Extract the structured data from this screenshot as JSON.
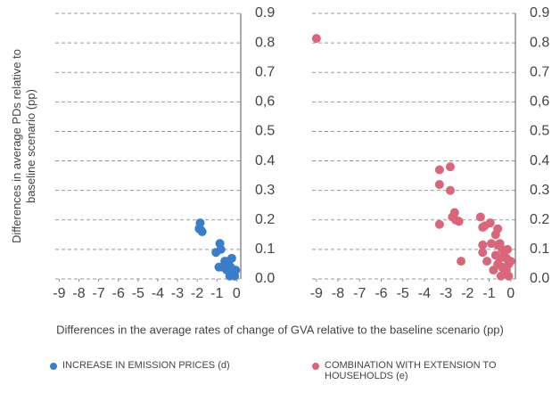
{
  "chart_data": [
    {
      "type": "scatter",
      "y_label": [
        "Differences in average PDs relative to",
        "baseline scenario (pp)"
      ],
      "x_label": "Differences in the average rates of change of GVA relative to the baseline scenario (pp)",
      "xlim": [
        -9.2,
        0.3
      ],
      "xticks": [
        -9,
        -8,
        -7,
        -6,
        -5,
        -4,
        -3,
        -2,
        -1,
        0
      ],
      "ylim": [
        0,
        0.9
      ],
      "yticks": [
        {
          "value": 0,
          "label": "0.0"
        },
        0.1,
        0.2,
        0.3,
        0.4,
        0.5,
        {
          "value": 0.6,
          "label": "0,6"
        },
        0.7,
        0.8,
        0.9
      ],
      "grid": true,
      "series": [
        {
          "name": "INCREASE IN EMISSION PRICES (d)",
          "color": "#3a7dc9",
          "x": [
            -1.85,
            -1.9,
            -1.8,
            -1.75,
            -0.85,
            -0.8,
            -1.05,
            -0.9,
            -0.6,
            -0.5,
            -0.4,
            -0.3,
            -0.2,
            -0.15,
            -0.1,
            -0.3,
            -0.05,
            -0.25,
            -0.5,
            -0.35,
            -0.7
          ],
          "values": [
            0.19,
            0.17,
            0.165,
            0.16,
            0.12,
            0.1,
            0.09,
            0.04,
            0.06,
            0.05,
            0.06,
            0.04,
            0.03,
            0.02,
            0.01,
            0.02,
            0.03,
            0.07,
            0.03,
            0.01,
            0.04
          ]
        }
      ]
    },
    {
      "type": "scatter",
      "xlim": [
        -9.2,
        0.3
      ],
      "xticks": [
        -9,
        -8,
        -7,
        -6,
        -5,
        -4,
        -3,
        -2,
        -1,
        0
      ],
      "ylim": [
        0,
        0.9
      ],
      "yticks": [
        {
          "value": 0,
          "label": "0.0"
        },
        0.1,
        0.2,
        0.3,
        0.4,
        0.5,
        {
          "value": 0.6,
          "label": "0,6"
        },
        0.7,
        0.8,
        0.9
      ],
      "grid": true,
      "series": [
        {
          "name": "COMBINATION WITH EXTENSION TO HOUSEHOLDS (e)",
          "color": "#d9667b",
          "x": [
            -9.0,
            -3.3,
            -2.8,
            -3.3,
            -2.8,
            -2.6,
            -2.7,
            -2.55,
            -2.4,
            -3.3,
            -2.3,
            -1.4,
            -1.2,
            -1.3,
            -0.95,
            -0.6,
            -0.7,
            -1.3,
            -0.9,
            -0.6,
            -1.3,
            -1.1,
            -0.8,
            -0.5,
            -0.4,
            -0.3,
            -0.2,
            -0.1,
            -0.5,
            -0.4,
            -0.3,
            -0.2,
            -0.1,
            -0.6,
            -0.7,
            0.0,
            -0.15,
            -0.45
          ],
          "values": [
            0.815,
            0.37,
            0.38,
            0.32,
            0.3,
            0.225,
            0.21,
            0.2,
            0.195,
            0.185,
            0.06,
            0.21,
            0.18,
            0.175,
            0.19,
            0.17,
            0.15,
            0.115,
            0.12,
            0.115,
            0.09,
            0.06,
            0.03,
            0.12,
            0.1,
            0.09,
            0.07,
            0.05,
            0.07,
            0.04,
            0.02,
            0.03,
            0.01,
            0.05,
            0.08,
            0.06,
            0.1,
            0.01
          ]
        }
      ]
    }
  ]
}
